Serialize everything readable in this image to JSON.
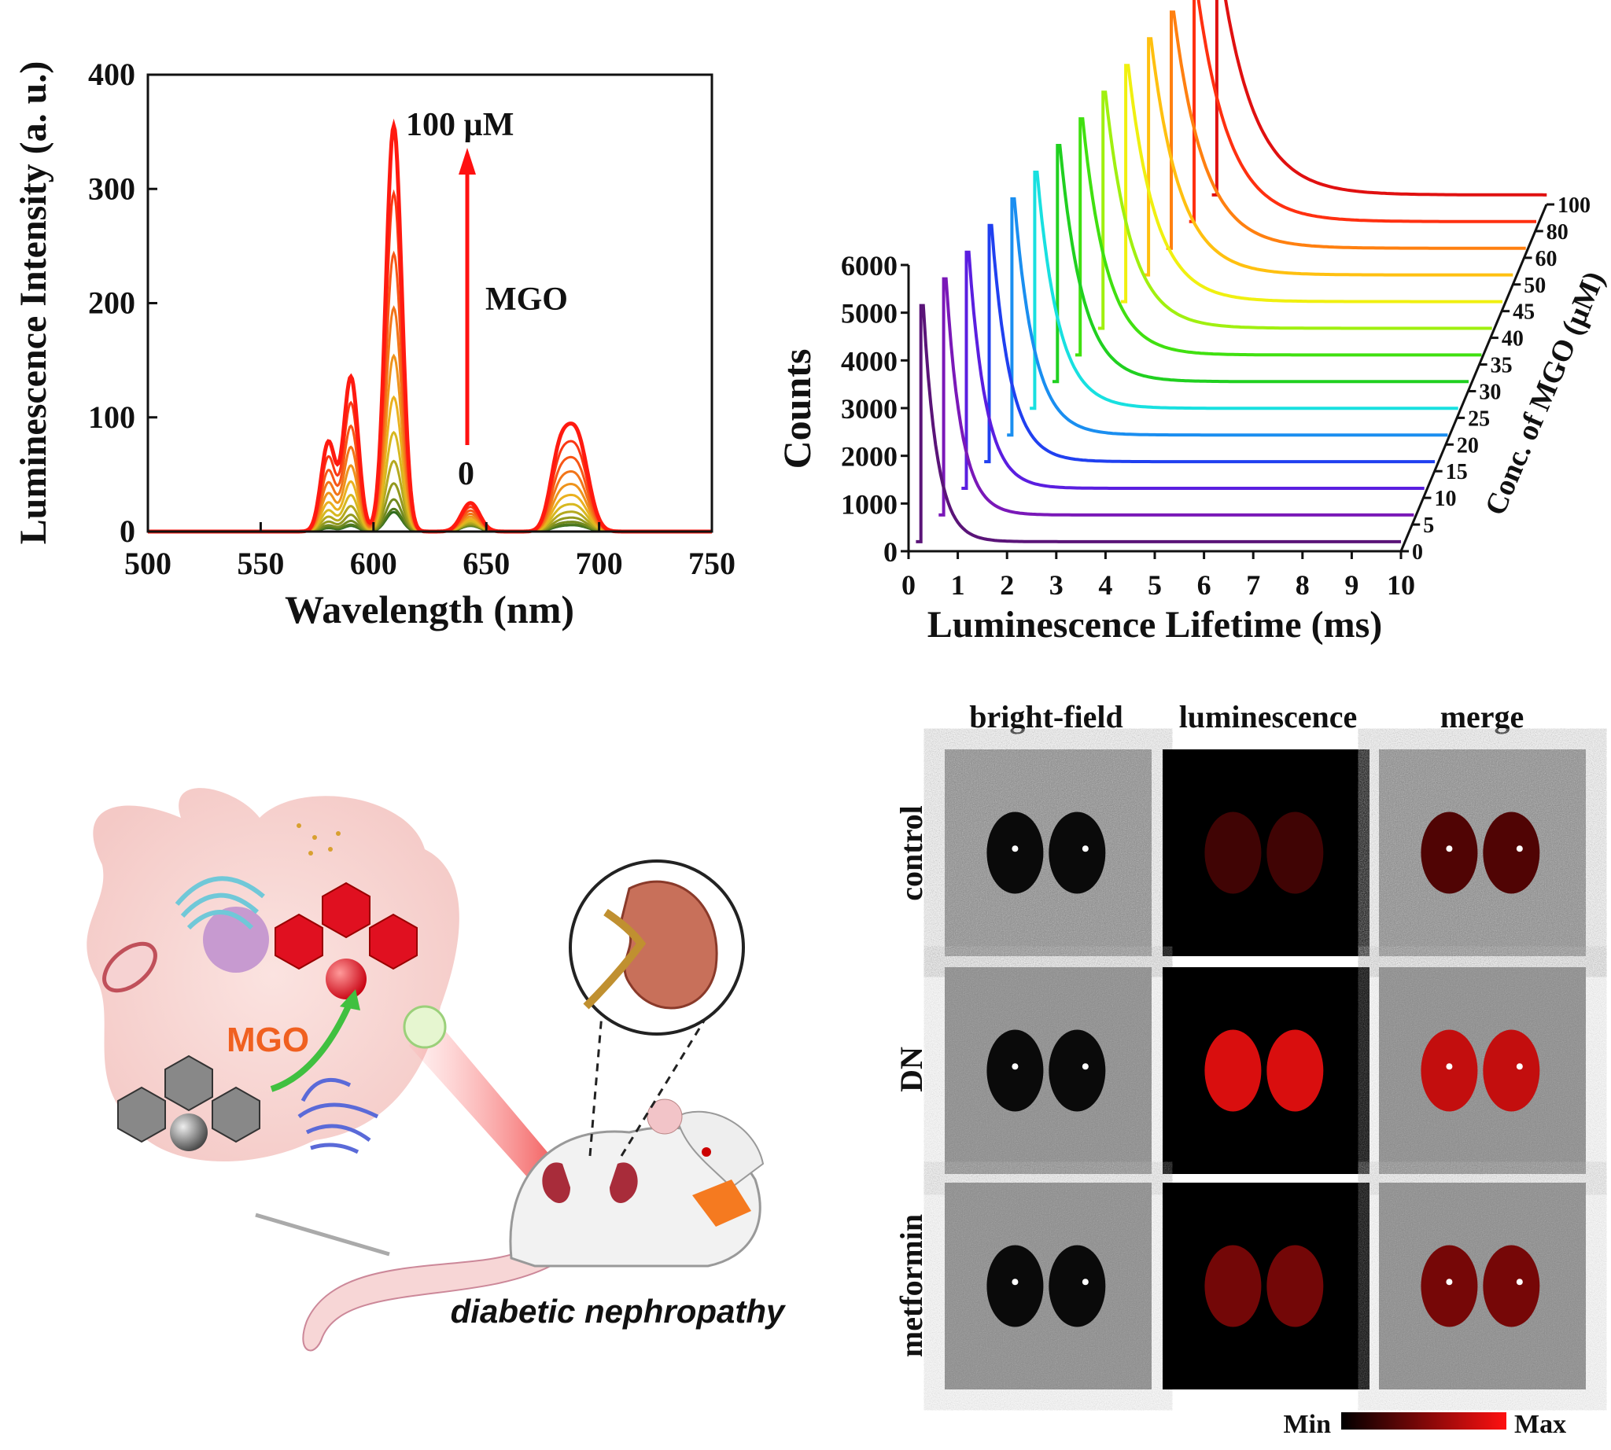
{
  "chart_data": [
    {
      "type": "line",
      "xlabel": "Wavelength (nm)",
      "ylabel": "Luminescence Intensity (a. u.)",
      "xlim": [
        500,
        750
      ],
      "ylim": [
        0,
        400
      ],
      "xticks": [
        500,
        550,
        600,
        650,
        700,
        750
      ],
      "yticks": [
        0,
        100,
        200,
        300,
        400
      ],
      "grid": false,
      "annotations": {
        "top": "100 µM",
        "bottom": "0",
        "arrow": "MGO"
      },
      "peaks_nm": [
        580,
        590,
        609,
        643,
        682,
        690
      ],
      "series": [
        {
          "name": "0",
          "peak_values": [
            3,
            5,
            17,
            5,
            3,
            5
          ]
        },
        {
          "name": "100 µM",
          "peak_values": [
            78,
            135,
            355,
            25,
            55,
            83
          ]
        }
      ],
      "series_count": 12,
      "colors": {
        "low": "#2e6b1e",
        "mid": "#e8c020",
        "high": "#ff1a10"
      }
    },
    {
      "type": "line",
      "subtype": "3d-waterfall",
      "xlabel": "Luminescence Lifetime (ms)",
      "ylabel": "Counts",
      "zlabel": "Conc. of MGO (µM)",
      "xlim": [
        0,
        10
      ],
      "ylim": [
        0,
        6000
      ],
      "xticks": [
        0,
        1,
        2,
        3,
        4,
        5,
        6,
        7,
        8,
        9,
        10
      ],
      "yticks": [
        0,
        1000,
        2000,
        3000,
        4000,
        5000,
        6000
      ],
      "zticks": [
        "0",
        "5",
        "10",
        "15",
        "20",
        "25",
        "30",
        "35",
        "40",
        "45",
        "50",
        "60",
        "80",
        "100"
      ],
      "baseline_counts": 200,
      "peak_counts": 5150,
      "series_colors": [
        "#5a1478",
        "#7a18b8",
        "#5a1ee0",
        "#2040f0",
        "#1a8ef0",
        "#18e0e0",
        "#20d020",
        "#40e010",
        "#a0f010",
        "#f0f010",
        "#ffc010",
        "#ff8010",
        "#ff3010",
        "#e01010"
      ]
    }
  ],
  "illustration": {
    "mgo_label": "MGO",
    "caption": "diabetic nephropathy"
  },
  "imaging": {
    "columns": [
      "bright-field",
      "luminescence",
      "merge"
    ],
    "rows": [
      "control",
      "DN",
      "metformin"
    ],
    "intensity": {
      "control": 0.25,
      "DN": 0.85,
      "metformin": 0.45
    },
    "colorbar": {
      "min": "Min",
      "max": "Max",
      "from": "#000000",
      "to": "#ff1010"
    }
  }
}
